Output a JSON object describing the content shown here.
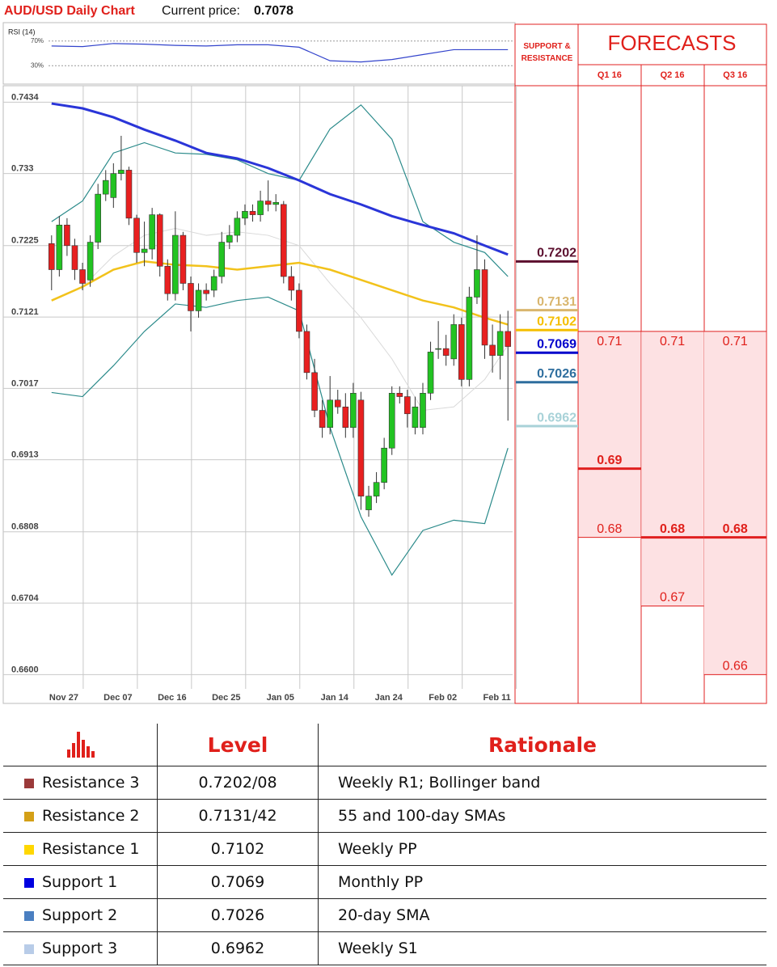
{
  "chart_data": {
    "type": "candlestick",
    "title": "AUD/USD Daily Chart",
    "current_price_label": "Current price:",
    "current_price": 0.7078,
    "categories": [
      null,
      null,
      "Nov 27",
      null,
      null,
      null,
      null,
      null,
      null,
      "Dec 07",
      null,
      null,
      null,
      null,
      null,
      null,
      "Dec 16",
      null,
      null,
      null,
      null,
      null,
      null,
      "Dec 25",
      null,
      null,
      null,
      null,
      null,
      null,
      "Jan 05",
      null,
      null,
      null,
      null,
      null,
      null,
      "Jan 14",
      null,
      null,
      null,
      null,
      null,
      null,
      "Jan 24",
      null,
      null,
      null,
      null,
      null,
      null,
      "Feb 02",
      null,
      null,
      null,
      null,
      null,
      null,
      "Feb 11",
      null
    ],
    "open": [
      0.7228,
      0.719,
      0.7255,
      0.7225,
      0.719,
      0.7175,
      0.723,
      0.73,
      0.7295,
      0.733,
      0.7335,
      0.7265,
      0.7215,
      0.722,
      0.727,
      0.7195,
      0.7155,
      0.724,
      0.717,
      0.713,
      0.716,
      0.716,
      0.718,
      0.723,
      0.724,
      0.7265,
      0.7275,
      0.727,
      0.729,
      0.7285,
      0.7285,
      0.718,
      0.716,
      0.71,
      0.704,
      0.6985,
      0.696,
      0.7,
      0.699,
      0.696,
      0.7,
      0.684,
      0.686,
      0.688,
      0.693,
      0.701,
      0.7005,
      0.696,
      0.696,
      0.701,
      0.7075,
      0.7075,
      0.706,
      0.711,
      0.703,
      0.715,
      0.719,
      0.708,
      0.7065,
      0.71
    ],
    "high": [
      0.724,
      0.7268,
      0.7265,
      0.7235,
      0.72,
      0.724,
      0.7315,
      0.7335,
      0.7345,
      0.7385,
      0.734,
      0.727,
      0.726,
      0.728,
      0.7272,
      0.7205,
      0.7275,
      0.7245,
      0.718,
      0.717,
      0.717,
      0.719,
      0.7245,
      0.7255,
      0.7275,
      0.7285,
      0.7285,
      0.7305,
      0.732,
      0.73,
      0.729,
      0.7195,
      0.717,
      0.711,
      0.706,
      0.7,
      0.7035,
      0.7015,
      0.701,
      0.7025,
      0.7012,
      0.6875,
      0.6895,
      0.6945,
      0.702,
      0.702,
      0.7015,
      0.7005,
      0.7025,
      0.7085,
      0.7115,
      0.7095,
      0.7125,
      0.712,
      0.7165,
      0.724,
      0.7205,
      0.711,
      0.7125,
      0.713
    ],
    "low": [
      0.716,
      0.718,
      0.721,
      0.7175,
      0.716,
      0.7165,
      0.722,
      0.729,
      0.728,
      0.732,
      0.7255,
      0.72,
      0.7195,
      0.7205,
      0.718,
      0.7145,
      0.7145,
      0.716,
      0.71,
      0.712,
      0.7145,
      0.715,
      0.717,
      0.722,
      0.723,
      0.7255,
      0.726,
      0.726,
      0.7275,
      0.7275,
      0.717,
      0.7145,
      0.709,
      0.703,
      0.6975,
      0.6945,
      0.695,
      0.698,
      0.6945,
      0.6945,
      0.684,
      0.683,
      0.685,
      0.687,
      0.692,
      0.6995,
      0.696,
      0.695,
      0.695,
      0.7,
      0.706,
      0.705,
      0.705,
      0.702,
      0.702,
      0.714,
      0.706,
      0.704,
      0.703,
      0.697
    ],
    "close": [
      0.719,
      0.7255,
      0.7225,
      0.719,
      0.717,
      0.723,
      0.73,
      0.732,
      0.733,
      0.7335,
      0.7265,
      0.7215,
      0.722,
      0.727,
      0.7195,
      0.7155,
      0.724,
      0.717,
      0.713,
      0.716,
      0.7155,
      0.718,
      0.723,
      0.724,
      0.7265,
      0.7275,
      0.727,
      0.729,
      0.7285,
      0.7288,
      0.718,
      0.716,
      0.71,
      0.704,
      0.6985,
      0.696,
      0.7,
      0.699,
      0.696,
      0.701,
      0.686,
      0.686,
      0.688,
      0.693,
      0.701,
      0.7005,
      0.698,
      0.699,
      0.701,
      0.707,
      0.7075,
      0.7065,
      0.711,
      0.703,
      0.715,
      0.719,
      0.708,
      0.7065,
      0.71,
      0.7078
    ],
    "up_color": "#22c322",
    "down_color": "#e82020",
    "ylim": [
      0.6558,
      0.7458
    ],
    "yticks": [
      0.7434,
      0.733,
      0.7225,
      0.7121,
      0.7017,
      0.6913,
      0.6808,
      0.6704,
      {
        "value": 0.66,
        "label": "0.6600"
      }
    ],
    "grid": true,
    "overlays": {
      "x": [
        0,
        4,
        8,
        12,
        16,
        20,
        24,
        28,
        32,
        36,
        40,
        44,
        48,
        52,
        56,
        59
      ],
      "series": [
        {
          "color": "#d9d9d9",
          "width": 1,
          "values": [
            0.7145,
            0.7165,
            0.721,
            0.724,
            0.725,
            0.724,
            0.7245,
            0.724,
            0.7225,
            0.717,
            0.712,
            0.706,
            0.6985,
            0.699,
            0.703,
            0.708
          ]
        },
        {
          "color": "#2a8a8a",
          "width": 1.2,
          "values": [
            0.726,
            0.729,
            0.736,
            0.7375,
            0.736,
            0.7358,
            0.735,
            0.733,
            0.732,
            0.7395,
            0.743,
            0.738,
            0.726,
            0.723,
            0.7215,
            0.718
          ]
        },
        {
          "color": "#2a8a8a",
          "width": 1.2,
          "values": [
            0.7011,
            0.7005,
            0.705,
            0.71,
            0.714,
            0.7135,
            0.7145,
            0.715,
            0.713,
            0.696,
            0.683,
            0.6745,
            0.681,
            0.6825,
            0.682,
            0.693
          ]
        },
        {
          "color": "#f2c21b",
          "width": 2.5,
          "values": [
            0.7145,
            0.7165,
            0.719,
            0.7202,
            0.7197,
            0.7195,
            0.719,
            0.7195,
            0.72,
            0.719,
            0.7175,
            0.716,
            0.7145,
            0.7135,
            0.712,
            0.711
          ]
        },
        {
          "color": "#2a35d8",
          "width": 3,
          "values": [
            0.7432,
            0.7425,
            0.7412,
            0.7394,
            0.7378,
            0.736,
            0.7352,
            0.7338,
            0.732,
            0.73,
            0.7285,
            0.7268,
            0.7255,
            0.7243,
            0.7225,
            0.7212
          ]
        }
      ]
    },
    "rsi": {
      "label": "RSI (14)",
      "ylim": [
        0,
        100
      ],
      "yticks": [
        {
          "value": 70,
          "label": "70%"
        },
        {
          "value": 30,
          "label": "30%"
        }
      ],
      "color": "#3344cc",
      "x": [
        0,
        4,
        8,
        12,
        16,
        20,
        24,
        28,
        32,
        36,
        40,
        44,
        48,
        52,
        56,
        59
      ],
      "values": [
        62,
        61,
        66,
        65,
        63,
        62,
        64,
        64,
        60,
        38,
        36,
        40,
        48,
        56,
        56,
        56
      ]
    },
    "levels_header": "SUPPORT & RESISTANCE",
    "levels": [
      {
        "value": 0.7202,
        "color": "#5c0f2e"
      },
      {
        "value": 0.7131,
        "color": "#d9b66e"
      },
      {
        "value": 0.7102,
        "color": "#f5bf00"
      },
      {
        "value": 0.7069,
        "color": "#0000cc"
      },
      {
        "value": 0.7026,
        "color": "#2e6e9e"
      },
      {
        "value": 0.6962,
        "color": "#a8d2d8"
      }
    ],
    "forecasts_title": "FORECASTS",
    "forecasts": [
      {
        "name": "Q1 16",
        "high": 0.71,
        "median": 0.69,
        "low": 0.68
      },
      {
        "name": "Q2 16",
        "high": 0.71,
        "median": 0.68,
        "low": 0.67
      },
      {
        "name": "Q3 16",
        "high": 0.71,
        "median": 0.68,
        "low": 0.66
      }
    ]
  },
  "table": {
    "header": [
      "Level",
      "Rationale"
    ],
    "rows": [
      {
        "color": "#9b3a3a",
        "cells": [
          "Resistance 3",
          "0.7202/08",
          "Weekly R1; Bollinger band"
        ]
      },
      {
        "color": "#d4a017",
        "cells": [
          "Resistance 2",
          "0.7131/42",
          "55 and 100-day SMAs"
        ]
      },
      {
        "color": "#ffd700",
        "cells": [
          "Resistance 1",
          "0.7102",
          "Weekly PP"
        ]
      },
      {
        "color": "#0000e0",
        "cells": [
          "Support 1",
          "0.7069",
          "Monthly PP"
        ]
      },
      {
        "color": "#4a7fc1",
        "cells": [
          "Support 2",
          "0.7026",
          "20-day SMA"
        ]
      },
      {
        "color": "#b8cce8",
        "cells": [
          "Support 3",
          "0.6962",
          "Weekly S1"
        ]
      }
    ]
  }
}
